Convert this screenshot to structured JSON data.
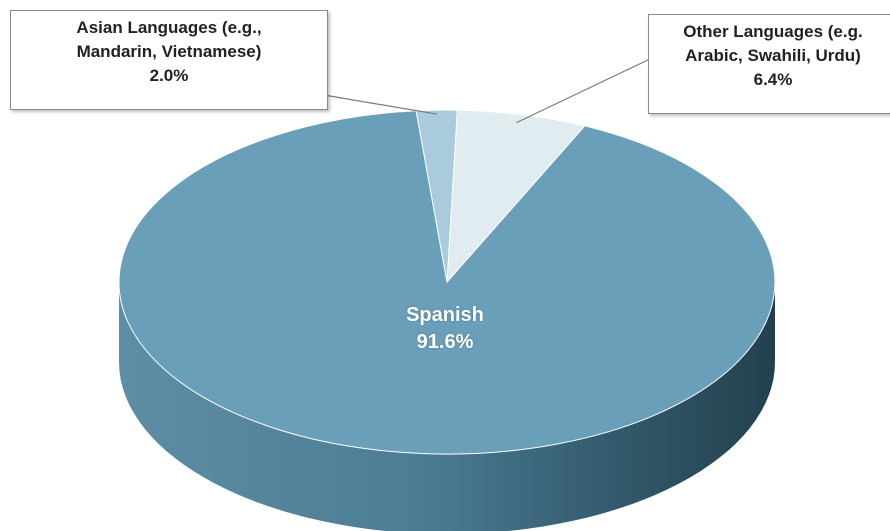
{
  "chart_data": {
    "type": "pie",
    "style": "3d",
    "slices": [
      {
        "label": "Spanish",
        "value": 91.6,
        "value_label": "91.6%",
        "color": "#6a9fba"
      },
      {
        "label": "Other Languages (e.g. Arabic, Swahili, Urdu)",
        "value": 6.4,
        "value_label": "6.4%",
        "color": "#e1ecf0"
      },
      {
        "label": "Asian Languages (e.g., Mandarin, Vietnamese)",
        "value": 2.0,
        "value_label": "2.0%",
        "color": "#a9cbdb"
      }
    ],
    "labels": {
      "spanish": {
        "line1": "Spanish",
        "line2": "91.6%"
      },
      "asian": {
        "line1": "Asian Languages (e.g.,",
        "line2": "Mandarin, Vietnamese)",
        "line3": "2.0%"
      },
      "other": {
        "line1": "Other Languages (e.g.",
        "line2": "Arabic, Swahili, Urdu)",
        "line3": "6.4%"
      }
    },
    "title": "",
    "legend": "none",
    "colors": {
      "side_light": "#6a9fba",
      "side_dark": "#24404e",
      "callout_border": "#8a8a8a",
      "leader_line": "#7a7a7a"
    }
  }
}
